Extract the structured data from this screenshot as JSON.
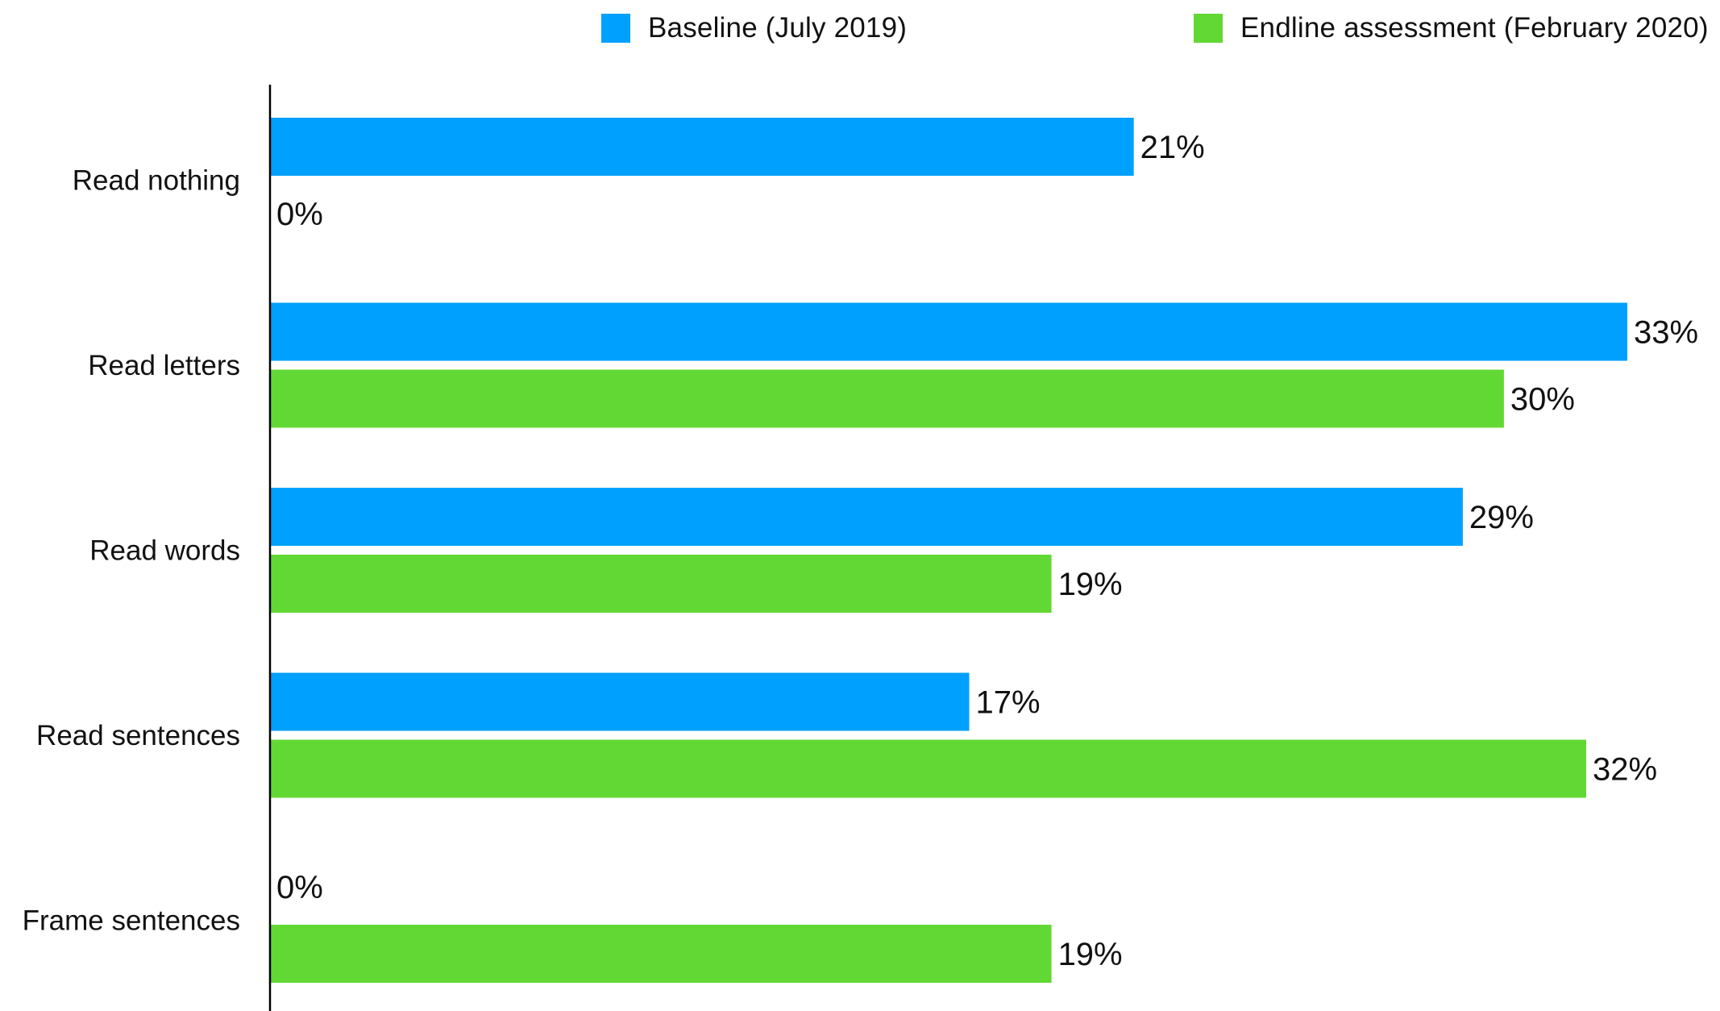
{
  "chart_data": {
    "type": "bar",
    "orientation": "horizontal",
    "categories": [
      "Read nothing",
      "Read letters",
      "Read words",
      "Read sentences",
      "Frame sentences"
    ],
    "series": [
      {
        "name": "Baseline (July 2019)",
        "color": "#00A0FF",
        "values": [
          21,
          33,
          29,
          17,
          0
        ],
        "labels": [
          "21%",
          "33%",
          "29%",
          "17%",
          "0%"
        ]
      },
      {
        "name": "Endline assessment (February 2020)",
        "color": "#62D834",
        "values": [
          0,
          30,
          19,
          32,
          19
        ],
        "labels": [
          "0%",
          "30%",
          "19%",
          "32%",
          "19%"
        ]
      }
    ],
    "xlim": [
      0,
      33
    ],
    "legend_position": "top",
    "grid": false,
    "value_format": "percent"
  }
}
